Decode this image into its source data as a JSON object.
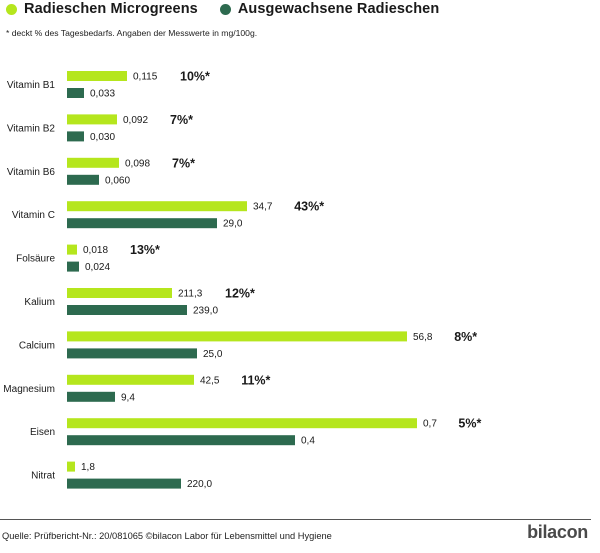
{
  "legend": {
    "micro": {
      "label": "Radieschen Microgreens",
      "color": "#b5e61d"
    },
    "adult": {
      "label": "Ausgewachsene Radieschen",
      "color": "#2d6a4f"
    }
  },
  "footnote": "* deckt % des Tagesbedarfs. Angaben der Messwerte in mg/100g.",
  "source": "Quelle: Prüfbericht-Nr.: 20/081065 ©bilacon Labor für Lebensmittel und Hygiene",
  "logo": "bilacon",
  "chart_data": {
    "type": "bar",
    "orientation": "horizontal",
    "title": "",
    "unit": "mg/100g",
    "legend_position": "top-left",
    "categories": [
      "Vitamin B1",
      "Vitamin B2",
      "Vitamin B6",
      "Vitamin C",
      "Folsäure",
      "Kalium",
      "Calcium",
      "Magnesium",
      "Eisen",
      "Nitrat"
    ],
    "series": [
      {
        "name": "Radieschen Microgreens",
        "color": "#b5e61d",
        "values": [
          0.115,
          0.092,
          0.098,
          34.7,
          0.018,
          211.3,
          56.8,
          42.5,
          0.7,
          1.8
        ],
        "labels": [
          "0,115",
          "0,092",
          "0,098",
          "34,7",
          "0,018",
          "211,3",
          "56,8",
          "42,5",
          "0,7",
          "1,8"
        ],
        "bar_scale": [
          0.6,
          0.5,
          0.52,
          1.8,
          0.1,
          1.05,
          3.4,
          1.27,
          3.5,
          0.08
        ]
      },
      {
        "name": "Ausgewachsene Radieschen",
        "color": "#2d6a4f",
        "values": [
          0.033,
          0.03,
          0.06,
          29.0,
          0.024,
          239.0,
          25.0,
          9.4,
          0.4,
          220.0
        ],
        "labels": [
          "0,033",
          "0,030",
          "0,060",
          "29,0",
          "0,024",
          "239,0",
          "25,0",
          "9,4",
          "0,4",
          "220,0"
        ],
        "bar_scale": [
          0.17,
          0.17,
          0.32,
          1.5,
          0.12,
          1.2,
          1.3,
          0.48,
          2.28,
          1.14
        ]
      }
    ],
    "daily_value_percent": [
      "10%*",
      "7%*",
      "7%*",
      "43%*",
      "13%*",
      "12%*",
      "8%*",
      "11%*",
      "5%*",
      ""
    ]
  }
}
